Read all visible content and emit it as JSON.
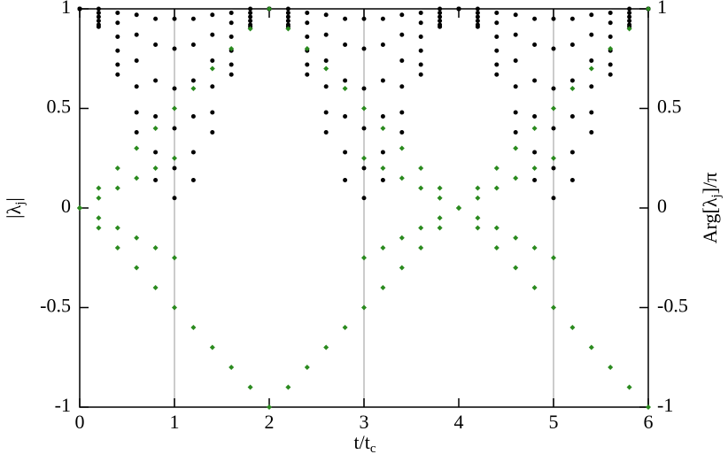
{
  "chart_data": {
    "type": "scatter",
    "x_label": [
      "t/t",
      "c"
    ],
    "y_label": [
      "|λ",
      "j",
      "|"
    ],
    "y2_label": [
      "Arg[λ",
      "j",
      "]/π"
    ],
    "x": [
      0,
      0.2,
      0.4,
      0.6,
      0.8,
      1,
      1.2,
      1.4,
      1.6,
      1.8,
      2,
      2.2,
      2.4,
      2.6,
      2.8,
      3,
      3.2,
      3.4,
      3.6,
      3.8,
      4,
      4.2,
      4.4,
      4.6,
      4.8,
      5,
      5.2,
      5.4,
      5.6,
      5.8,
      6
    ],
    "xlim": [
      0,
      6
    ],
    "xticks": [
      0,
      1,
      2,
      3,
      4,
      5,
      6
    ],
    "ylim": [
      -1,
      1
    ],
    "yticks": [
      -1,
      -0.5,
      0,
      0.5,
      1
    ],
    "y2lim": [
      -1,
      1
    ],
    "y2ticks": [
      -1,
      -0.5,
      0,
      0.5,
      1
    ],
    "vlines": [
      1,
      3,
      5
    ],
    "vline_color": "#cccccc",
    "series": [
      {
        "color": "#000000",
        "marker": "circle",
        "values": [
          1,
          0.91,
          0.67,
          0.38,
          0.14,
          0.05,
          0.14,
          0.38,
          0.67,
          0.91,
          1,
          0.91,
          0.67,
          0.38,
          0.14,
          0.05,
          0.14,
          0.38,
          0.67,
          0.91,
          1,
          0.91,
          0.67,
          0.38,
          0.14,
          0.05,
          0.14,
          0.38,
          0.67,
          0.91,
          1
        ]
      },
      {
        "color": "#000000",
        "marker": "circle",
        "values": [
          1,
          0.92,
          0.72,
          0.48,
          0.28,
          0.2,
          0.28,
          0.48,
          0.72,
          0.92,
          1,
          0.92,
          0.72,
          0.48,
          0.28,
          0.2,
          0.28,
          0.48,
          0.72,
          0.92,
          1,
          0.92,
          0.72,
          0.48,
          0.28,
          0.2,
          0.28,
          0.48,
          0.72,
          0.92,
          1
        ]
      },
      {
        "color": "#000000",
        "marker": "circle",
        "values": [
          1,
          0.94,
          0.79,
          0.61,
          0.46,
          0.4,
          0.46,
          0.61,
          0.79,
          0.94,
          1,
          0.94,
          0.79,
          0.61,
          0.46,
          0.4,
          0.46,
          0.61,
          0.79,
          0.94,
          1,
          0.94,
          0.79,
          0.61,
          0.46,
          0.4,
          0.46,
          0.61,
          0.79,
          0.94,
          1
        ]
      },
      {
        "color": "#000000",
        "marker": "circle",
        "values": [
          1,
          0.96,
          0.86,
          0.74,
          0.64,
          0.6,
          0.64,
          0.74,
          0.86,
          0.96,
          1,
          0.96,
          0.86,
          0.74,
          0.64,
          0.6,
          0.64,
          0.74,
          0.86,
          0.96,
          1,
          0.96,
          0.86,
          0.74,
          0.64,
          0.6,
          0.64,
          0.74,
          0.86,
          0.96,
          1
        ]
      },
      {
        "color": "#000000",
        "marker": "circle",
        "values": [
          1,
          0.98,
          0.93,
          0.87,
          0.82,
          0.8,
          0.82,
          0.87,
          0.93,
          0.98,
          1,
          0.98,
          0.93,
          0.87,
          0.82,
          0.8,
          0.82,
          0.87,
          0.93,
          0.98,
          1,
          0.98,
          0.93,
          0.87,
          0.82,
          0.8,
          0.82,
          0.87,
          0.93,
          0.98,
          1
        ]
      },
      {
        "color": "#000000",
        "marker": "circle",
        "values": [
          1,
          1,
          0.98,
          0.97,
          0.95,
          0.95,
          0.95,
          0.97,
          0.98,
          1,
          1,
          1,
          0.98,
          0.97,
          0.95,
          0.95,
          0.95,
          0.97,
          0.98,
          1,
          1,
          1,
          0.98,
          0.97,
          0.95,
          0.95,
          0.95,
          0.97,
          0.98,
          1,
          1
        ]
      },
      {
        "color": "#2a8a1e",
        "marker": "diamond",
        "axis": "y2",
        "values": [
          0,
          0.1,
          0.2,
          0.3,
          0.4,
          0.5,
          0.6,
          0.7,
          0.8,
          0.9,
          1,
          0.9,
          0.8,
          0.7,
          0.6,
          0.5,
          0.4,
          0.3,
          0.2,
          0.1,
          0,
          -0.1,
          -0.2,
          -0.3,
          -0.4,
          -0.5,
          -0.6,
          -0.7,
          -0.8,
          -0.9,
          -1
        ]
      },
      {
        "color": "#2a8a1e",
        "marker": "diamond",
        "axis": "y2",
        "values": [
          0,
          -0.1,
          -0.2,
          -0.3,
          -0.4,
          -0.5,
          -0.6,
          -0.7,
          -0.8,
          -0.9,
          -1,
          -0.9,
          -0.8,
          -0.7,
          -0.6,
          -0.5,
          -0.4,
          -0.3,
          -0.2,
          -0.1,
          0,
          0.1,
          0.2,
          0.3,
          0.4,
          0.5,
          0.6,
          0.7,
          0.8,
          0.9,
          1
        ]
      },
      {
        "color": "#2a8a1e",
        "marker": "diamond",
        "axis": "y2",
        "values": [
          0,
          0.05,
          0.1,
          0.15,
          0.2,
          0.25,
          null,
          null,
          null,
          null,
          null,
          null,
          null,
          null,
          null,
          0.25,
          0.2,
          0.15,
          0.1,
          0.05,
          0,
          -0.05,
          -0.1,
          -0.15,
          -0.2,
          -0.25,
          null,
          null,
          null,
          null,
          null
        ]
      },
      {
        "color": "#2a8a1e",
        "marker": "diamond",
        "axis": "y2",
        "values": [
          0,
          -0.05,
          -0.1,
          -0.15,
          -0.2,
          -0.25,
          null,
          null,
          null,
          null,
          null,
          null,
          null,
          null,
          null,
          -0.25,
          -0.2,
          -0.15,
          -0.1,
          -0.05,
          0,
          0.05,
          0.1,
          0.15,
          0.2,
          0.25,
          null,
          null,
          null,
          null,
          null
        ]
      }
    ]
  }
}
